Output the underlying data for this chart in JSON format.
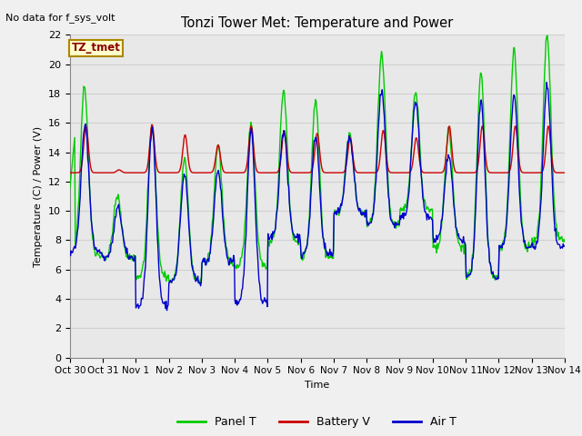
{
  "title": "Tonzi Tower Met: Temperature and Power",
  "top_left_text": "No data for f_sys_volt",
  "xlabel": "Time",
  "ylabel": "Temperature (C) / Power (V)",
  "ylim": [
    0,
    22
  ],
  "yticks": [
    0,
    2,
    4,
    6,
    8,
    10,
    12,
    14,
    16,
    18,
    20,
    22
  ],
  "xtick_labels": [
    "Oct 30",
    "Oct 31",
    "Nov 1",
    "Nov 2",
    "Nov 3",
    "Nov 4",
    "Nov 5",
    "Nov 6",
    "Nov 7",
    "Nov 8",
    "Nov 9",
    "Nov 10",
    "Nov 11",
    "Nov 12",
    "Nov 13",
    "Nov 14"
  ],
  "legend_entries": [
    "Panel T",
    "Battery V",
    "Air T"
  ],
  "panel_color": "#00cc00",
  "battery_color": "#cc0000",
  "air_color": "#0000cc",
  "box_label": "TZ_tmet",
  "box_facecolor": "#ffffcc",
  "box_edgecolor": "#aa8800",
  "box_textcolor": "#880000",
  "grid_color": "#d0d0d0",
  "plot_bg": "#e8e8e8",
  "fig_bg": "#f0f0f0",
  "linewidth": 1.0
}
